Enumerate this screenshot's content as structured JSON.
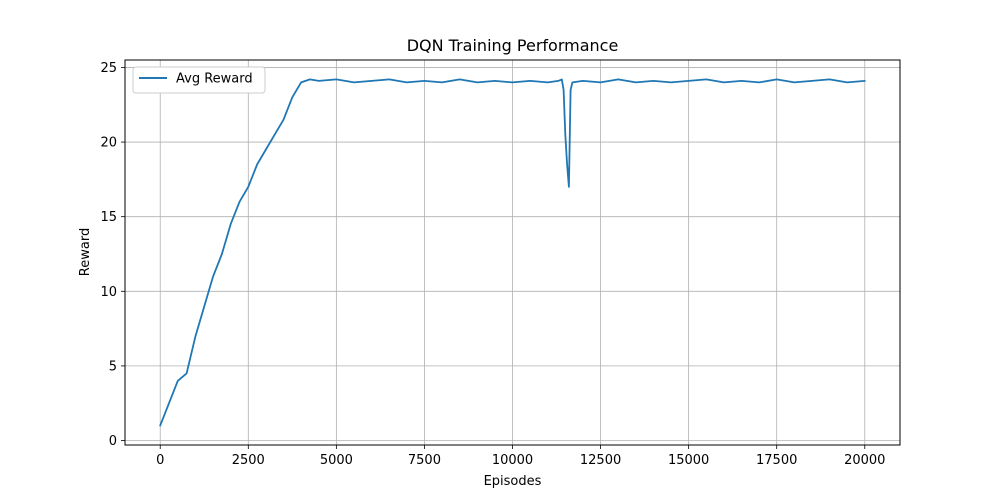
{
  "chart_data": {
    "type": "line",
    "title": "DQN Training Performance",
    "xlabel": "Episodes",
    "ylabel": "Reward",
    "xlim": [
      -1000,
      21000
    ],
    "ylim": [
      -0.3,
      25.5
    ],
    "xticks": [
      0,
      2500,
      5000,
      7500,
      10000,
      12500,
      15000,
      17500,
      20000
    ],
    "yticks": [
      0,
      5,
      10,
      15,
      20,
      25
    ],
    "grid": true,
    "legend_position": "top-left",
    "series": [
      {
        "name": "Avg Reward",
        "color": "#1f77b4",
        "x": [
          0,
          250,
          500,
          750,
          1000,
          1250,
          1500,
          1750,
          2000,
          2250,
          2500,
          2750,
          3000,
          3250,
          3500,
          3750,
          4000,
          4250,
          4500,
          5000,
          5500,
          6000,
          6500,
          7000,
          7500,
          8000,
          8500,
          9000,
          9500,
          10000,
          10500,
          11000,
          11300,
          11400,
          11450,
          11500,
          11550,
          11600,
          11650,
          11700,
          12000,
          12500,
          13000,
          13500,
          14000,
          14500,
          15000,
          15500,
          16000,
          16500,
          17000,
          17500,
          18000,
          18500,
          19000,
          19500,
          20000
        ],
        "y": [
          1.0,
          2.5,
          4.0,
          4.5,
          7.0,
          9.0,
          11.0,
          12.5,
          14.5,
          16.0,
          17.0,
          18.5,
          19.5,
          20.5,
          21.5,
          23.0,
          24.0,
          24.2,
          24.1,
          24.2,
          24.0,
          24.1,
          24.2,
          24.0,
          24.1,
          24.0,
          24.2,
          24.0,
          24.1,
          24.0,
          24.1,
          24.0,
          24.1,
          24.2,
          23.5,
          20.5,
          18.5,
          17.0,
          23.5,
          24.0,
          24.1,
          24.0,
          24.2,
          24.0,
          24.1,
          24.0,
          24.1,
          24.2,
          24.0,
          24.1,
          24.0,
          24.2,
          24.0,
          24.1,
          24.2,
          24.0,
          24.1
        ]
      }
    ]
  }
}
